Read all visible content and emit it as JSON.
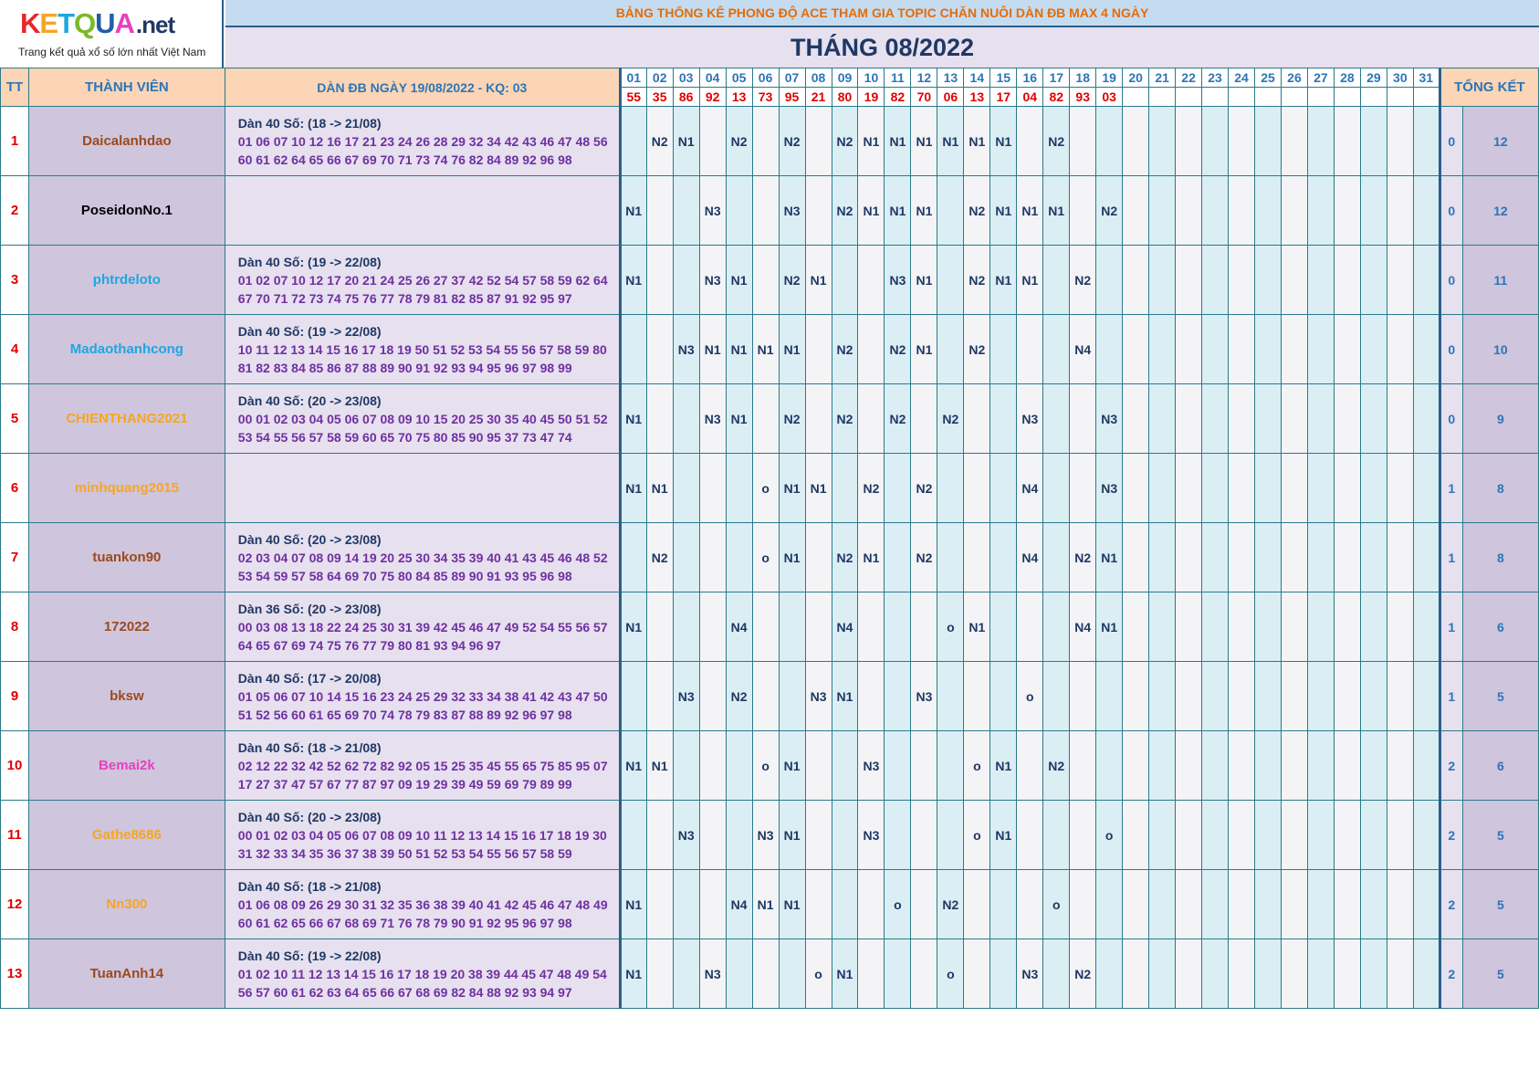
{
  "logo": {
    "word": "KETQUA.net",
    "letters": [
      "K",
      "E",
      "T",
      "Q",
      "U",
      "A"
    ],
    "suffix": ".net",
    "tagline": "Trang kết quả xổ số lớn nhất Việt Nam"
  },
  "title_top": "BẢNG THỐNG KÊ PHONG ĐỘ ACE THAM GIA TOPIC CHĂN NUÔI DÀN ĐB MAX 4 NGÀY",
  "title_month": "THÁNG 08/2022",
  "columns": {
    "tt": "TT",
    "member": "THÀNH VIÊN",
    "dan": "DÀN ĐB NGÀY 19/08/2022 - KQ: 03",
    "total": "TỔNG KẾT"
  },
  "days": [
    "01",
    "02",
    "03",
    "04",
    "05",
    "06",
    "07",
    "08",
    "09",
    "10",
    "11",
    "12",
    "13",
    "14",
    "15",
    "16",
    "17",
    "18",
    "19",
    "20",
    "21",
    "22",
    "23",
    "24",
    "25",
    "26",
    "27",
    "28",
    "29",
    "30",
    "31"
  ],
  "results": [
    "55",
    "35",
    "86",
    "92",
    "13",
    "73",
    "95",
    "21",
    "80",
    "19",
    "82",
    "70",
    "06",
    "13",
    "17",
    "04",
    "82",
    "93",
    "03",
    "",
    "",
    "",
    "",
    "",
    "",
    "",
    "",
    "",
    "",
    "",
    ""
  ],
  "colors": {
    "orange_title": "#e46c0a",
    "navy": "#1f3864",
    "red": "#e00000",
    "blue": "#2e75b6",
    "purple": "#7030a0"
  },
  "rows": [
    {
      "tt": "1",
      "name": "Daicalanhdao",
      "name_color": "#9c4a1c",
      "dan_title": "Dàn 40 Số: (18 -> 21/08)",
      "dan_line1": "01 06 07 10 12 16 17 21 23 24 26 28 29 32 34 42 43 46 47 48 56",
      "dan_line2": "60 61 62 64 65 66 67 69 70 71 73 74 76 82 84 89 92 96 98",
      "marks": [
        "",
        "N2",
        "N1",
        "",
        "N2",
        "",
        "N2",
        "",
        "N2",
        "N1",
        "N1",
        "N1",
        "N1",
        "N1",
        "N1",
        "",
        "N2",
        "",
        "",
        "",
        "",
        "",
        "",
        "",
        "",
        "",
        "",
        "",
        "",
        "",
        ""
      ],
      "win": "0",
      "total": "12"
    },
    {
      "tt": "2",
      "name": "PoseidonNo.1",
      "name_color": "#000000",
      "dan_title": "",
      "dan_line1": "",
      "dan_line2": "",
      "marks": [
        "N1",
        "",
        "",
        "N3",
        "",
        "",
        "N3",
        "",
        "N2",
        "N1",
        "N1",
        "N1",
        "",
        "N2",
        "N1",
        "N1",
        "N1",
        "",
        "N2",
        "",
        "",
        "",
        "",
        "",
        "",
        "",
        "",
        "",
        "",
        "",
        ""
      ],
      "win": "0",
      "total": "12"
    },
    {
      "tt": "3",
      "name": "phtrdeloto",
      "name_color": "#1ea7e0",
      "dan_title": "Dàn 40 Số: (19 -> 22/08)",
      "dan_line1": "01 02 07 10 12 17 20 21 24 25 26 27 37 42 52 54 57 58 59 62 64",
      "dan_line2": "67 70 71 72 73 74 75 76 77 78 79 81 82 85 87 91 92 95 97",
      "marks": [
        "N1",
        "",
        "",
        "N3",
        "N1",
        "",
        "N2",
        "N1",
        "",
        "",
        "N3",
        "N1",
        "",
        "N2",
        "N1",
        "N1",
        "",
        "N2",
        "",
        "",
        "",
        "",
        "",
        "",
        "",
        "",
        "",
        "",
        "",
        "",
        ""
      ],
      "win": "0",
      "total": "11"
    },
    {
      "tt": "4",
      "name": "Madaothanhcong",
      "name_color": "#1ea7e0",
      "dan_title": "Dàn 40 Số: (19 -> 22/08)",
      "dan_line1": "10 11 12 13 14 15 16 17 18 19 50 51 52 53 54 55 56 57 58 59 80",
      "dan_line2": "81 82 83 84 85 86 87 88 89 90 91 92 93 94 95 96 97 98 99",
      "marks": [
        "",
        "",
        "N3",
        "N1",
        "N1",
        "N1",
        "N1",
        "",
        "N2",
        "",
        "N2",
        "N1",
        "",
        "N2",
        "",
        "",
        "",
        "N4",
        "",
        "",
        "",
        "",
        "",
        "",
        "",
        "",
        "",
        "",
        "",
        "",
        ""
      ],
      "win": "0",
      "total": "10"
    },
    {
      "tt": "5",
      "name": "CHIENTHANG2021",
      "name_color": "#f5a623",
      "dan_title": "Dàn 40 Số: (20 -> 23/08)",
      "dan_line1": "00 01 02 03 04 05 06 07 08 09 10 15 20 25 30 35 40 45 50 51 52",
      "dan_line2": "53 54 55 56 57 58 59 60 65 70 75 80 85 90 95 37 73 47 74",
      "marks": [
        "N1",
        "",
        "",
        "N3",
        "N1",
        "",
        "N2",
        "",
        "N2",
        "",
        "N2",
        "",
        "N2",
        "",
        "",
        "N3",
        "",
        "",
        "N3",
        "",
        "",
        "",
        "",
        "",
        "",
        "",
        "",
        "",
        "",
        "",
        ""
      ],
      "win": "0",
      "total": "9"
    },
    {
      "tt": "6",
      "name": "minhquang2015",
      "name_color": "#f5a623",
      "dan_title": "",
      "dan_line1": "",
      "dan_line2": "",
      "marks": [
        "N1",
        "N1",
        "",
        "",
        "",
        "o",
        "N1",
        "N1",
        "",
        "N2",
        "",
        "N2",
        "",
        "",
        "",
        "N4",
        "",
        "",
        "N3",
        "",
        "",
        "",
        "",
        "",
        "",
        "",
        "",
        "",
        "",
        "",
        ""
      ],
      "win": "1",
      "total": "8"
    },
    {
      "tt": "7",
      "name": "tuankon90",
      "name_color": "#9c4a1c",
      "dan_title": "Dàn 40 Số: (20 -> 23/08)",
      "dan_line1": "02 03 04 07 08 09 14 19 20 25 30 34 35 39 40 41 43 45 46 48 52",
      "dan_line2": "53 54 59 57 58 64 69 70 75 80 84 85 89 90 91 93 95 96 98",
      "marks": [
        "",
        "N2",
        "",
        "",
        "",
        "o",
        "N1",
        "",
        "N2",
        "N1",
        "",
        "N2",
        "",
        "",
        "",
        "N4",
        "",
        "N2",
        "N1",
        "",
        "",
        "",
        "",
        "",
        "",
        "",
        "",
        "",
        "",
        "",
        ""
      ],
      "win": "1",
      "total": "8"
    },
    {
      "tt": "8",
      "name": "172022",
      "name_color": "#9c4a1c",
      "dan_title": "Dàn 36 Số: (20 -> 23/08)",
      "dan_line1": "00 03 08 13 18 22 24 25 30 31 39 42 45 46 47 49 52 54 55 56 57",
      "dan_line2": "64 65 67 69 74 75 76 77 79 80 81 93 94 96 97",
      "marks": [
        "N1",
        "",
        "",
        "",
        "N4",
        "",
        "",
        "",
        "N4",
        "",
        "",
        "",
        "o",
        "N1",
        "",
        "",
        "",
        "N4",
        "N1",
        "",
        "",
        "",
        "",
        "",
        "",
        "",
        "",
        "",
        "",
        "",
        ""
      ],
      "win": "1",
      "total": "6"
    },
    {
      "tt": "9",
      "name": "bksw",
      "name_color": "#9c4a1c",
      "dan_title": "Dàn 40 Số: (17 -> 20/08)",
      "dan_line1": "01 05 06 07 10 14 15 16 23 24 25 29 32 33 34 38 41 42 43 47 50",
      "dan_line2": "51 52 56 60 61 65 69 70 74 78 79 83 87 88 89 92 96 97 98",
      "marks": [
        "",
        "",
        "N3",
        "",
        "N2",
        "",
        "",
        "N3",
        "N1",
        "",
        "",
        "N3",
        "",
        "",
        "",
        "o",
        "",
        "",
        "",
        "",
        "",
        "",
        "",
        "",
        "",
        "",
        "",
        "",
        "",
        "",
        ""
      ],
      "win": "1",
      "total": "5"
    },
    {
      "tt": "10",
      "name": "Bemai2k",
      "name_color": "#e83fbf",
      "dan_title": "Dàn 40 Số: (18 -> 21/08)",
      "dan_line1": "02 12 22 32 42 52 62 72 82 92 05 15 25 35 45 55 65 75 85 95 07",
      "dan_line2": "17 27 37 47 57 67 77 87 97 09 19 29 39 49 59 69 79 89 99",
      "marks": [
        "N1",
        "N1",
        "",
        "",
        "",
        "o",
        "N1",
        "",
        "",
        "N3",
        "",
        "",
        "",
        "o",
        "N1",
        "",
        "N2",
        "",
        "",
        "",
        "",
        "",
        "",
        "",
        "",
        "",
        "",
        "",
        "",
        "",
        ""
      ],
      "win": "2",
      "total": "6"
    },
    {
      "tt": "11",
      "name": "Gathe8686",
      "name_color": "#f5a623",
      "dan_title": "Dàn 40 Số: (20 -> 23/08)",
      "dan_line1": "00 01 02 03 04 05 06 07 08 09 10 11 12 13 14 15 16 17 18 19 30",
      "dan_line2": "31 32 33 34 35 36 37 38 39 50 51 52 53 54 55 56 57 58 59",
      "marks": [
        "",
        "",
        "N3",
        "",
        "",
        "N3",
        "N1",
        "",
        "",
        "N3",
        "",
        "",
        "",
        "o",
        "N1",
        "",
        "",
        "",
        "o",
        "",
        "",
        "",
        "",
        "",
        "",
        "",
        "",
        "",
        "",
        "",
        ""
      ],
      "win": "2",
      "total": "5"
    },
    {
      "tt": "12",
      "name": "Nn300",
      "name_color": "#f5a623",
      "dan_title": "Dàn 40 Số: (18 -> 21/08)",
      "dan_line1": "01 06 08 09 26 29 30 31 32 35 36 38 39 40 41 42 45 46 47 48 49",
      "dan_line2": "60 61 62 65 66 67 68 69 71 76 78 79 90 91 92 95 96 97 98",
      "marks": [
        "N1",
        "",
        "",
        "",
        "N4",
        "N1",
        "N1",
        "",
        "",
        "",
        "o",
        "",
        "N2",
        "",
        "",
        "",
        "o",
        "",
        "",
        "",
        "",
        "",
        "",
        "",
        "",
        "",
        "",
        "",
        "",
        "",
        ""
      ],
      "win": "2",
      "total": "5"
    },
    {
      "tt": "13",
      "name": "TuanAnh14",
      "name_color": "#9c4a1c",
      "dan_title": "Dàn 40 Số: (19 -> 22/08)",
      "dan_line1": "01 02 10 11 12 13 14 15 16 17 18 19 20 38 39 44 45 47 48 49 54",
      "dan_line2": "56 57 60 61 62 63 64 65 66 67 68 69 82 84 88 92 93 94 97",
      "marks": [
        "N1",
        "",
        "",
        "N3",
        "",
        "",
        "",
        "o",
        "N1",
        "",
        "",
        "",
        "o",
        "",
        "",
        "N3",
        "",
        "N2",
        "",
        "",
        "",
        "",
        "",
        "",
        "",
        "",
        "",
        "",
        "",
        "",
        ""
      ],
      "win": "2",
      "total": "5"
    }
  ]
}
